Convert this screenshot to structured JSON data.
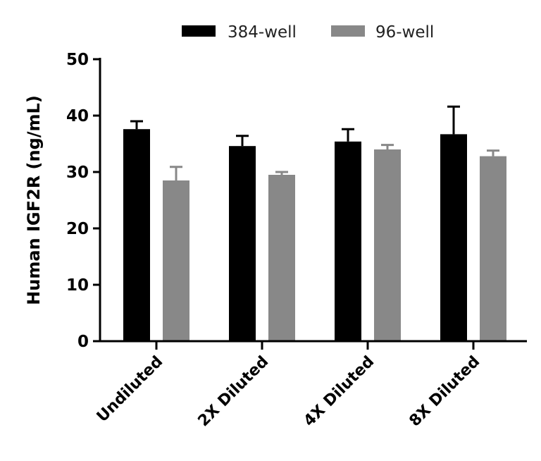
{
  "chart_data": {
    "type": "bar",
    "title": "",
    "xlabel": "",
    "ylabel": "Human IGF2R (ng/mL)",
    "ylim": [
      0,
      50
    ],
    "yticks": [
      0,
      10,
      20,
      30,
      40,
      50
    ],
    "categories": [
      "Undiluted",
      "2X Diluted",
      "4X Diluted",
      "8X Diluted"
    ],
    "series": [
      {
        "name": "384-well",
        "color": "#000000",
        "values": [
          37.6,
          34.6,
          35.4,
          36.7
        ],
        "errors": [
          1.4,
          1.8,
          2.2,
          4.9
        ]
      },
      {
        "name": "96-well",
        "color": "#888888",
        "values": [
          28.5,
          29.5,
          34.0,
          32.8
        ],
        "errors": [
          2.4,
          0.5,
          0.8,
          1.0
        ]
      }
    ],
    "legend": "top-center",
    "grid": false
  }
}
